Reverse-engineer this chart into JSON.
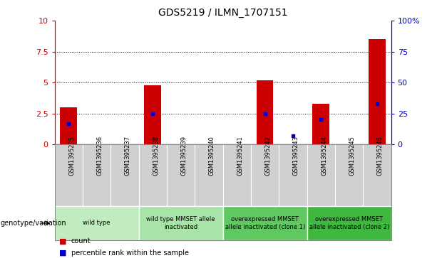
{
  "title": "GDS5219 / ILMN_1707151",
  "samples": [
    "GSM1395235",
    "GSM1395236",
    "GSM1395237",
    "GSM1395238",
    "GSM1395239",
    "GSM1395240",
    "GSM1395241",
    "GSM1395242",
    "GSM1395243",
    "GSM1395244",
    "GSM1395245",
    "GSM1395246"
  ],
  "counts": [
    3.0,
    0.0,
    0.0,
    4.8,
    0.0,
    0.0,
    0.0,
    5.2,
    0.0,
    3.3,
    0.0,
    8.5
  ],
  "percentiles": [
    17.0,
    0.0,
    0.0,
    25.0,
    0.0,
    0.0,
    0.0,
    25.0,
    7.0,
    20.0,
    0.0,
    33.0
  ],
  "ylim_left": [
    0,
    10
  ],
  "ylim_right": [
    0,
    100
  ],
  "yticks_left": [
    0,
    2.5,
    5.0,
    7.5,
    10
  ],
  "yticks_right": [
    0,
    25,
    50,
    75,
    100
  ],
  "ytick_labels_left": [
    "0",
    "2.5",
    "5",
    "7.5",
    "10"
  ],
  "ytick_labels_right": [
    "0",
    "25",
    "50",
    "75",
    "100%"
  ],
  "groups": [
    {
      "label": "wild type",
      "start": 0,
      "end": 3,
      "color": "#c0ecc0"
    },
    {
      "label": "wild type MMSET allele\ninactivated",
      "start": 3,
      "end": 6,
      "color": "#a8e4a8"
    },
    {
      "label": "overexpressed MMSET\nallele inactivated (clone 1)",
      "start": 6,
      "end": 9,
      "color": "#60c860"
    },
    {
      "label": "overexpressed MMSET\nallele inactivated (clone 2)",
      "start": 9,
      "end": 12,
      "color": "#40b840"
    }
  ],
  "bar_color": "#cc0000",
  "dot_color": "#0000cc",
  "bg_color": "#d0d0d0",
  "label_color_left": "#cc0000",
  "label_color_right": "#0000cc",
  "genotype_label": "genotype/variation",
  "legend_count_label": "count",
  "legend_pct_label": "percentile rank within the sample"
}
